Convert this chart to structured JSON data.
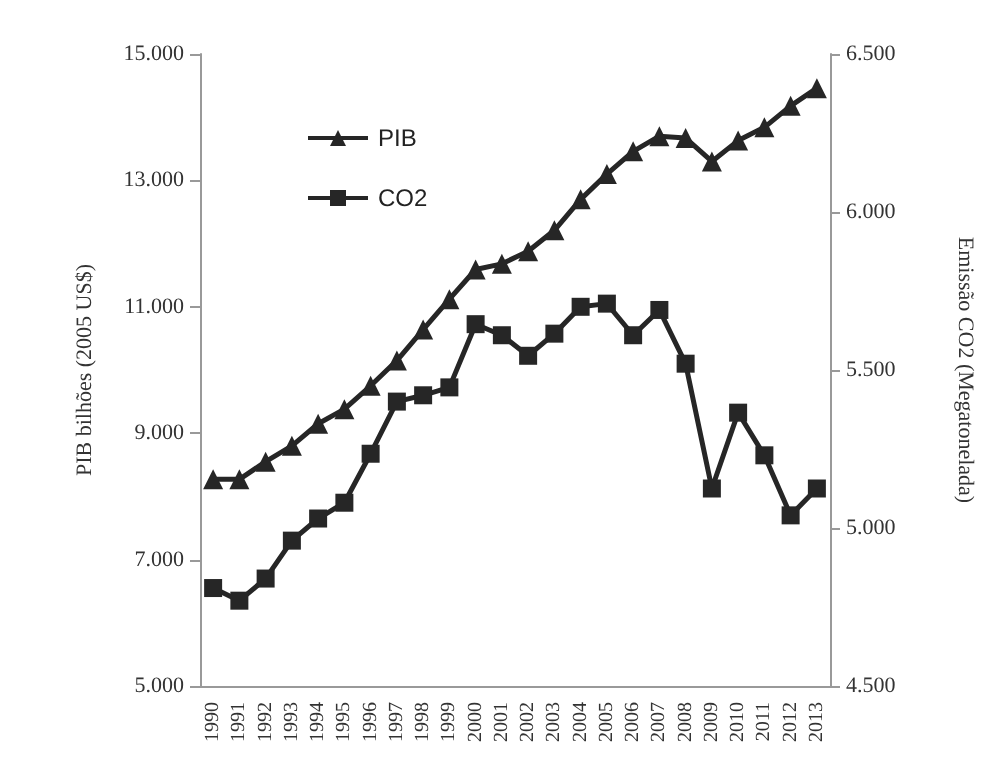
{
  "chart_data": {
    "type": "line",
    "ylabel": "PIB bilhões (2005 US$)",
    "y2label": "Emissão CO2 (Megatonelada)",
    "categories": [
      "1990",
      "1991",
      "1992",
      "1993",
      "1994",
      "1995",
      "1996",
      "1997",
      "1998",
      "1999",
      "2000",
      "2001",
      "2002",
      "2003",
      "2004",
      "2005",
      "2006",
      "2007",
      "2008",
      "2009",
      "2010",
      "2011",
      "2012",
      "2013"
    ],
    "series": [
      {
        "name": "PIB",
        "color": "#262626",
        "marker": "triangle",
        "values": [
          8270,
          8270,
          8550,
          8800,
          9150,
          9380,
          9750,
          10150,
          10640,
          11120,
          11590,
          11680,
          11880,
          12210,
          12700,
          13100,
          13460,
          13700,
          13670,
          13300,
          13630,
          13840,
          14180,
          14460
        ]
      },
      {
        "name": "CO2",
        "color": "#262626",
        "marker": "square",
        "axis": "y2",
        "values": [
          4810,
          4770,
          4840,
          4960,
          5030,
          5080,
          5235,
          5400,
          5420,
          5445,
          5645,
          5610,
          5545,
          5615,
          5700,
          5710,
          5610,
          5690,
          5520,
          5125,
          5365,
          5230,
          5040,
          5125
        ]
      }
    ],
    "ylim": [
      5000,
      15000
    ],
    "yticks": [
      {
        "value": 5000,
        "label": "5.000"
      },
      {
        "value": 7000,
        "label": "7.000"
      },
      {
        "value": 9000,
        "label": "9.000"
      },
      {
        "value": 11000,
        "label": "11.000"
      },
      {
        "value": 13000,
        "label": "13.000"
      },
      {
        "value": 15000,
        "label": "15.000"
      }
    ],
    "y2lim": [
      4500,
      6500
    ],
    "y2ticks": [
      {
        "value": 4500,
        "label": "4.500"
      },
      {
        "value": 5000,
        "label": "5.000"
      },
      {
        "value": 5500,
        "label": "5.500"
      },
      {
        "value": 6000,
        "label": "6.000"
      },
      {
        "value": 6500,
        "label": "6.500"
      }
    ],
    "legend": "top left",
    "grid": false
  }
}
